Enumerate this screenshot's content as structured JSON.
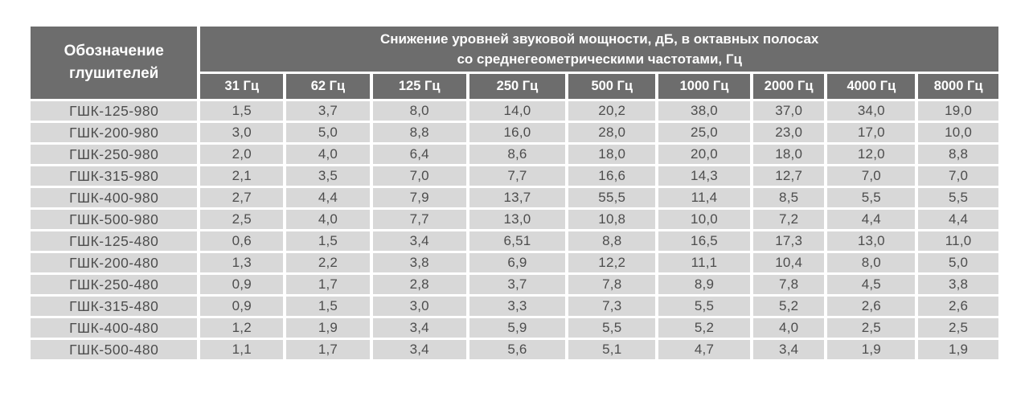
{
  "colors": {
    "header_bg": "#6d6d6d",
    "header_text": "#ffffff",
    "row_bg": "#d8d8d8",
    "body_text": "#4d4d4d",
    "background": "#ffffff"
  },
  "chart_data": {
    "type": "table",
    "title": "Снижение уровней звуковой мощности, дБ, в октавных полосах со среднегеометрическими частотами, Гц",
    "title_line1": "Снижение уровней звуковой мощности, дБ, в октавных полосах",
    "title_line2": "со среднегеометрическими частотами, Гц",
    "corner_header": "Обозначение глушителей",
    "corner_header_line1": "Обозначение",
    "corner_header_line2": "глушителей",
    "frequency_columns_hz": [
      "31 Гц",
      "62 Гц",
      "125 Гц",
      "250 Гц",
      "500 Гц",
      "1000 Гц",
      "2000 Гц",
      "4000 Гц",
      "8000 Гц"
    ],
    "rows": [
      {
        "name": "ГШК-125-980",
        "values": [
          "1,5",
          "3,7",
          "8,0",
          "14,0",
          "20,2",
          "38,0",
          "37,0",
          "34,0",
          "19,0"
        ]
      },
      {
        "name": "ГШК-200-980",
        "values": [
          "3,0",
          "5,0",
          "8,8",
          "16,0",
          "28,0",
          "25,0",
          "23,0",
          "17,0",
          "10,0"
        ]
      },
      {
        "name": "ГШК-250-980",
        "values": [
          "2,0",
          "4,0",
          "6,4",
          "8,6",
          "18,0",
          "20,0",
          "18,0",
          "12,0",
          "8,8"
        ]
      },
      {
        "name": "ГШК-315-980",
        "values": [
          "2,1",
          "3,5",
          "7,0",
          "7,7",
          "16,6",
          "14,3",
          "12,7",
          "7,0",
          "7,0"
        ]
      },
      {
        "name": "ГШК-400-980",
        "values": [
          "2,7",
          "4,4",
          "7,9",
          "13,7",
          "55,5",
          "11,4",
          "8,5",
          "5,5",
          "5,5"
        ]
      },
      {
        "name": "ГШК-500-980",
        "values": [
          "2,5",
          "4,0",
          "7,7",
          "13,0",
          "10,8",
          "10,0",
          "7,2",
          "4,4",
          "4,4"
        ]
      },
      {
        "name": "ГШК-125-480",
        "values": [
          "0,6",
          "1,5",
          "3,4",
          "6,51",
          "8,8",
          "16,5",
          "17,3",
          "13,0",
          "11,0"
        ]
      },
      {
        "name": "ГШК-200-480",
        "values": [
          "1,3",
          "2,2",
          "3,8",
          "6,9",
          "12,2",
          "11,1",
          "10,4",
          "8,0",
          "5,0"
        ]
      },
      {
        "name": "ГШК-250-480",
        "values": [
          "0,9",
          "1,7",
          "2,8",
          "3,7",
          "7,8",
          "8,9",
          "7,8",
          "4,5",
          "3,8"
        ]
      },
      {
        "name": "ГШК-315-480",
        "values": [
          "0,9",
          "1,5",
          "3,0",
          "3,3",
          "7,3",
          "5,5",
          "5,2",
          "2,6",
          "2,6"
        ]
      },
      {
        "name": "ГШК-400-480",
        "values": [
          "1,2",
          "1,9",
          "3,4",
          "5,9",
          "5,5",
          "5,2",
          "4,0",
          "2,5",
          "2,5"
        ]
      },
      {
        "name": "ГШК-500-480",
        "values": [
          "1,1",
          "1,7",
          "3,4",
          "5,6",
          "5,1",
          "4,7",
          "3,4",
          "1,9",
          "1,9"
        ]
      }
    ]
  }
}
